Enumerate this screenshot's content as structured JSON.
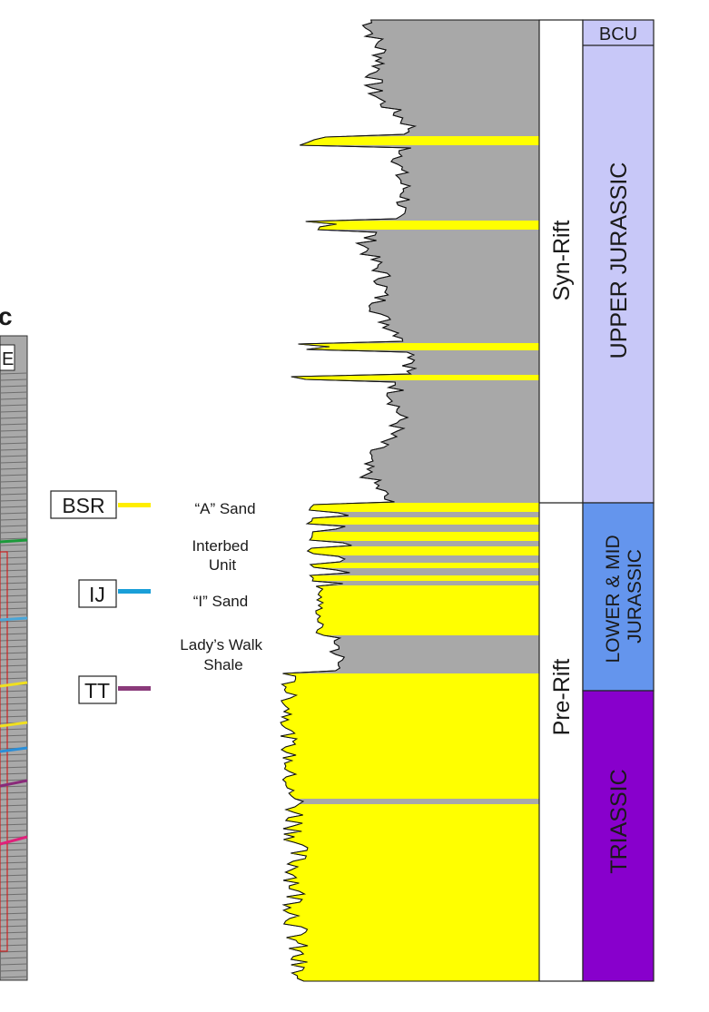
{
  "panel_letter": "c",
  "panel_corner_text": "E",
  "horizons": [
    {
      "code": "BSR",
      "color": "#ffee00",
      "label": "“A” Sand"
    },
    {
      "code": "IJ",
      "color": "#1a9fd8",
      "label": "“I” Sand"
    },
    {
      "code": "TT",
      "color": "#8a3a7a",
      "label": "Lady’s Walk Shale"
    }
  ],
  "unit_labels": {
    "interbed": "Interbed Unit"
  },
  "tectonic_phases": [
    "Syn-Rift",
    "Pre-Rift"
  ],
  "stratigraphy": [
    {
      "name": "BCU",
      "color": "#c8c8f8"
    },
    {
      "name": "UPPER JURASSIC",
      "color": "#c8c8f8"
    },
    {
      "name": "LOWER & MID JURASSIC",
      "color": "#6495ed"
    },
    {
      "name": "TRIASSIC",
      "color": "#8800cc"
    }
  ],
  "colors": {
    "sand": "#ffff00",
    "shale": "#a8a8a8",
    "seismic_bg": "#a9a9a9"
  }
}
